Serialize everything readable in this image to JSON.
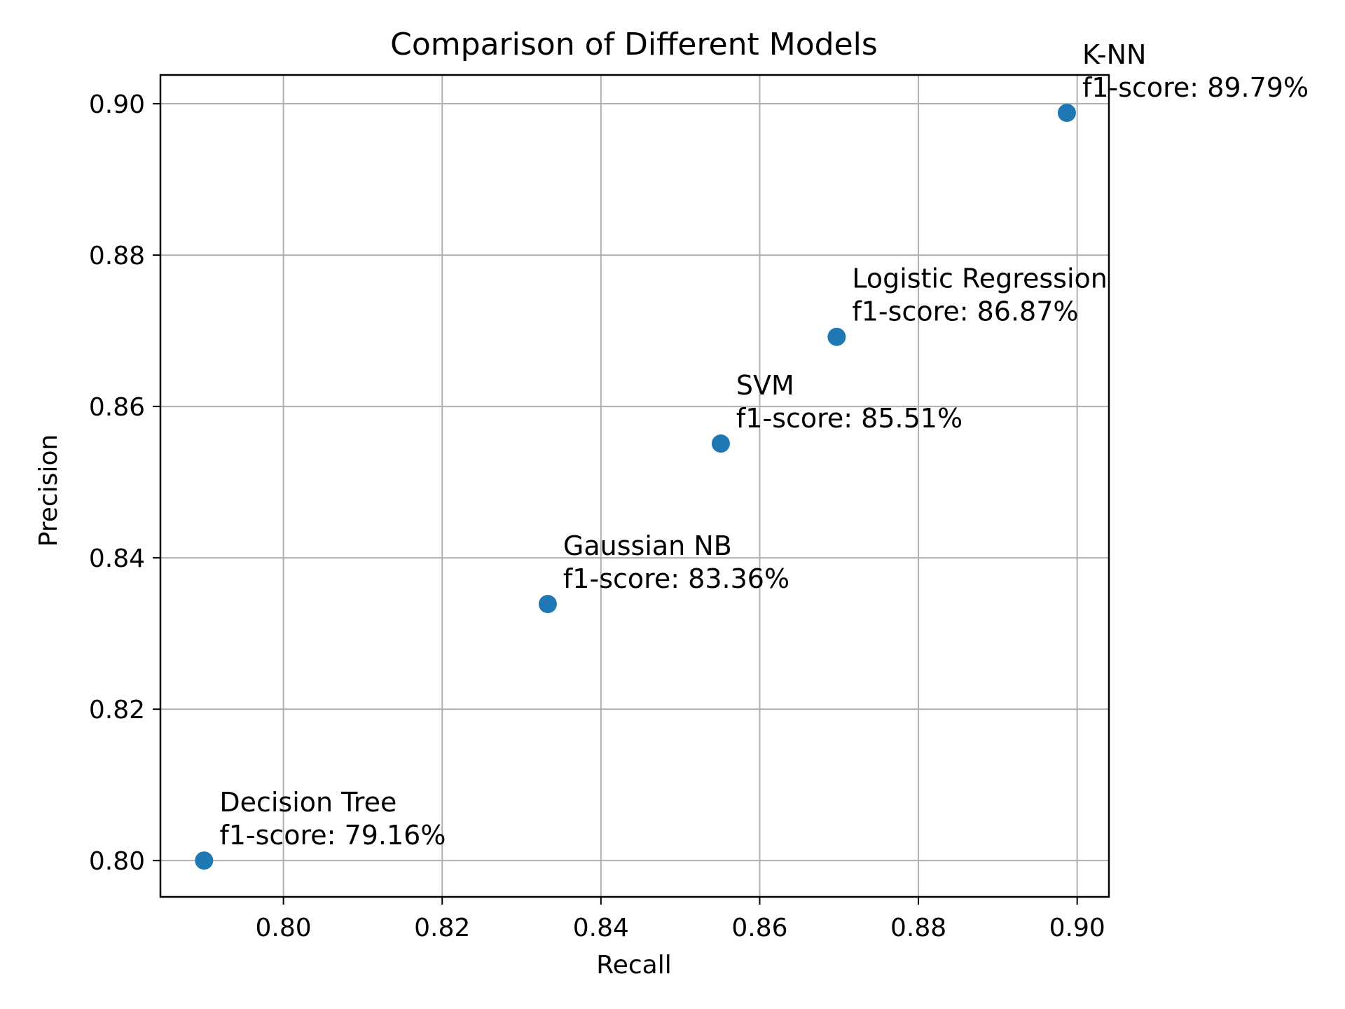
{
  "chart_data": {
    "type": "scatter",
    "title": "Comparison of Different Models",
    "xlabel": "Recall",
    "ylabel": "Precision",
    "xlim": [
      0.7845,
      0.904
    ],
    "ylim": [
      0.7952,
      0.9038
    ],
    "xticks": [
      0.8,
      0.82,
      0.84,
      0.86,
      0.88,
      0.9
    ],
    "yticks": [
      0.8,
      0.82,
      0.84,
      0.86,
      0.88,
      0.9
    ],
    "xtick_labels": [
      "0.80",
      "0.82",
      "0.84",
      "0.86",
      "0.88",
      "0.90"
    ],
    "ytick_labels": [
      "0.80",
      "0.82",
      "0.84",
      "0.86",
      "0.88",
      "0.90"
    ],
    "grid": true,
    "marker_color": "#1f77b4",
    "points": [
      {
        "name": "Decision Tree",
        "f1_label": "f1-score: 79.16%",
        "x": 0.79,
        "y": 0.8
      },
      {
        "name": "Gaussian NB",
        "f1_label": "f1-score: 83.36%",
        "x": 0.8333,
        "y": 0.8339
      },
      {
        "name": "SVM",
        "f1_label": "f1-score: 85.51%",
        "x": 0.8551,
        "y": 0.8551
      },
      {
        "name": "Logistic Regression",
        "f1_label": "f1-score: 86.87%",
        "x": 0.8697,
        "y": 0.8692
      },
      {
        "name": "K-NN",
        "f1_label": "f1-score: 89.79%",
        "x": 0.8987,
        "y": 0.8988
      }
    ]
  }
}
